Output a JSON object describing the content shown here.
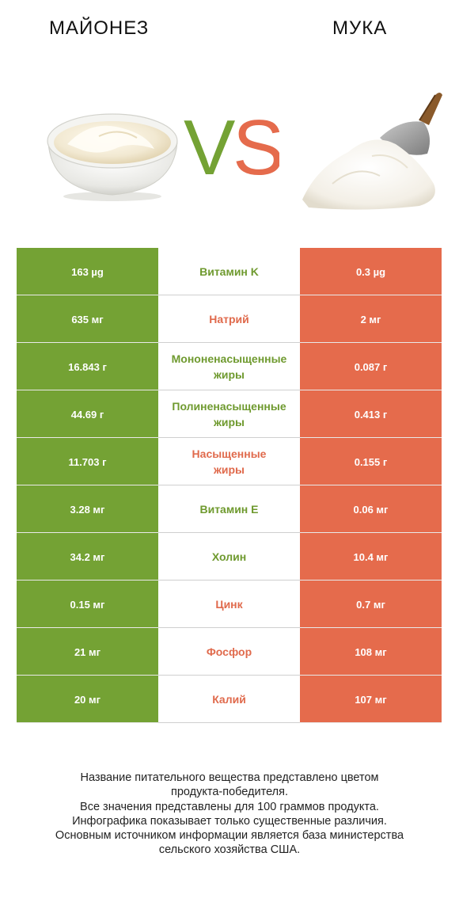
{
  "header": {
    "left_title": "МАЙОНЕЗ",
    "right_title": "МУКА",
    "vs_v": "V",
    "vs_s": "S"
  },
  "colors": {
    "left_product": "#74a234",
    "right_product": "#e56b4c"
  },
  "rows": [
    {
      "left": "163 µg",
      "nutrient": [
        "Витамин K"
      ],
      "right": "0.3 µg",
      "winner": "left"
    },
    {
      "left": "635 мг",
      "nutrient": [
        "Натрий"
      ],
      "right": "2 мг",
      "winner": "right"
    },
    {
      "left": "16.843 г",
      "nutrient": [
        "Мононенасыщенные",
        "жиры"
      ],
      "right": "0.087 г",
      "winner": "left"
    },
    {
      "left": "44.69 г",
      "nutrient": [
        "Полиненасыщенные",
        "жиры"
      ],
      "right": "0.413 г",
      "winner": "left"
    },
    {
      "left": "11.703 г",
      "nutrient": [
        "Насыщенные",
        "жиры"
      ],
      "right": "0.155 г",
      "winner": "right"
    },
    {
      "left": "3.28 мг",
      "nutrient": [
        "Витамин E"
      ],
      "right": "0.06 мг",
      "winner": "left"
    },
    {
      "left": "34.2 мг",
      "nutrient": [
        "Холин"
      ],
      "right": "10.4 мг",
      "winner": "left"
    },
    {
      "left": "0.15 мг",
      "nutrient": [
        "Цинк"
      ],
      "right": "0.7 мг",
      "winner": "right"
    },
    {
      "left": "21 мг",
      "nutrient": [
        "Фосфор"
      ],
      "right": "108 мг",
      "winner": "right"
    },
    {
      "left": "20 мг",
      "nutrient": [
        "Калий"
      ],
      "right": "107 мг",
      "winner": "right"
    }
  ],
  "footnote": [
    "Название питательного вещества представлено цветом",
    "продукта-победителя.",
    "Все значения представлены для 100 граммов продукта.",
    "Инфографика показывает только существенные различия.",
    "Основным источником информации является база министерства",
    "сельского хозяйства США."
  ]
}
